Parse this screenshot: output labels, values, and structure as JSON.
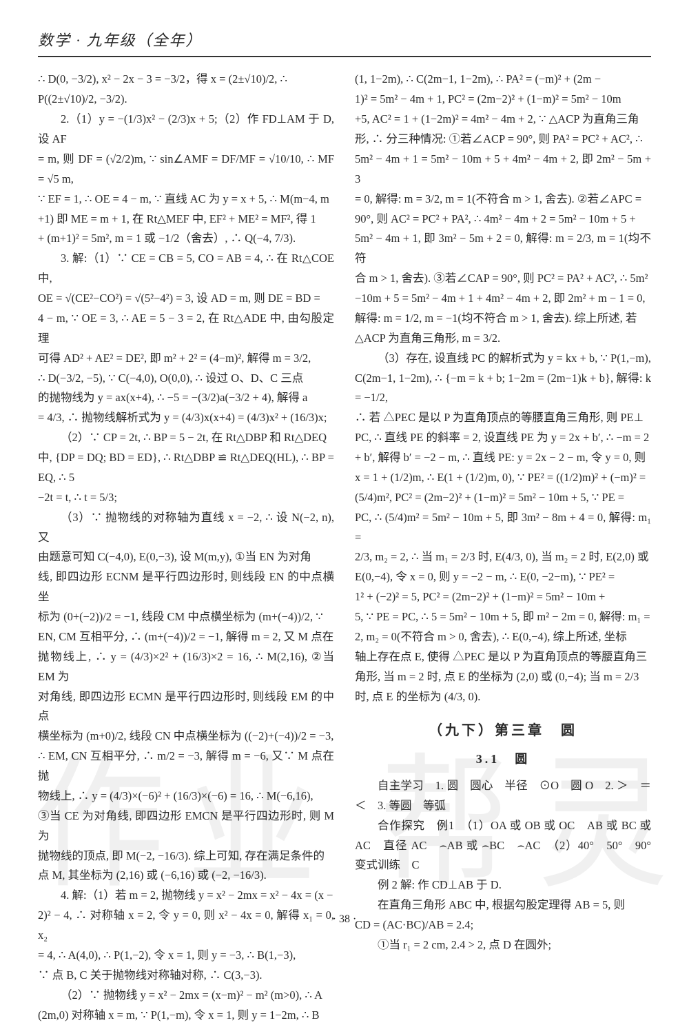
{
  "header": "数学 · 九年级（全年）",
  "pagenum": "· 38 ·",
  "watermark": [
    "作",
    "业",
    "帮",
    "灵"
  ],
  "left": [
    "∴ D(0, −3/2), x² − 2x − 3 = −3/2，得 x = (2±√10)/2, ∴",
    "P((2±√10)/2, −3/2).",
    "2.（1）y = −(1/3)x² − (2/3)x + 5;（2）作 FD⊥AM 于 D, 设 AF",
    "= m, 则 DF = (√2/2)m, ∵ sin∠AMF = DF/MF = √10/10, ∴ MF = √5 m,",
    "∵ EF = 1, ∴ OE = 4 − m, ∵ 直线 AC 为 y = x + 5, ∴ M(m−4, m",
    "+1) 即 ME = m + 1, 在 Rt△MEF 中, EF² + ME² = MF², 得 1",
    "+ (m+1)² = 5m², m = 1 或 −1/2（舍去）, ∴ Q(−4, 7/3).",
    "3. 解:（1）∵ CE = CB = 5, CO = AB = 4, ∴ 在 Rt△COE 中,",
    "OE = √(CE²−CO²) = √(5²−4²) = 3, 设 AD = m, 则 DE = BD =",
    "4 − m, ∵ OE = 3, ∴ AE = 5 − 3 = 2, 在 Rt△ADE 中, 由勾股定理",
    "可得 AD² + AE² = DE², 即 m² + 2² = (4−m)², 解得 m = 3/2,",
    "∴ D(−3/2, −5), ∵ C(−4,0), O(0,0), ∴ 设过 O、D、C 三点",
    "的抛物线为 y = ax(x+4), ∴ −5 = −(3/2)a(−3/2 + 4), 解得 a",
    "= 4/3, ∴ 抛物线解析式为 y = (4/3)x(x+4) = (4/3)x² + (16/3)x;",
    "（2）∵ CP = 2t, ∴ BP = 5 − 2t, 在 Rt△DBP 和 Rt△DEQ",
    "中, {DP = DQ; BD = ED}, ∴ Rt△DBP ≌ Rt△DEQ(HL), ∴ BP = EQ, ∴ 5",
    "−2t = t, ∴ t = 5/3;",
    "（3）∵ 抛物线的对称轴为直线 x = −2, ∴ 设 N(−2, n), 又",
    "由题意可知 C(−4,0), E(0,−3), 设 M(m,y), ①当 EN 为对角",
    "线, 即四边形 ECNM 是平行四边形时, 则线段 EN 的中点横坐",
    "标为 (0+(−2))/2 = −1, 线段 CM 中点横坐标为 (m+(−4))/2, ∵",
    "EN, CM 互相平分, ∴ (m+(−4))/2 = −1, 解得 m = 2, 又 M 点在",
    "抛物线上, ∴ y = (4/3)×2² + (16/3)×2 = 16, ∴ M(2,16), ②当 EM 为",
    "对角线, 即四边形 ECMN 是平行四边形时, 则线段 EM 的中点",
    "横坐标为 (m+0)/2, 线段 CN 中点横坐标为 ((−2)+(−4))/2 = −3,",
    "∴ EM, CN 互相平分, ∴ m/2 = −3, 解得 m = −6, 又∵ M 点在抛",
    "物线上, ∴ y = (4/3)×(−6)² + (16/3)×(−6) = 16, ∴ M(−6,16),",
    "③当 CE 为对角线, 即四边形 EMCN 是平行四边形时, 则 M 为",
    "抛物线的顶点, 即 M(−2, −16/3). 综上可知, 存在满足条件的",
    "点 M, 其坐标为 (2,16) 或 (−6,16) 或 (−2, −16/3).",
    "4. 解:（1）若 m = 2, 抛物线 y = x² − 2mx = x² − 4x = (x −",
    "2)² − 4, ∴ 对称轴 x = 2, 令 y = 0, 则 x² − 4x = 0, 解得 x₁ = 0, x₂",
    "= 4, ∴ A(4,0), ∴ P(1,−2), 令 x = 1, 则 y = −3, ∴ B(1,−3),",
    "∵ 点 B, C 关于抛物线对称轴对称, ∴ C(3,−3).",
    "（2）∵ 抛物线 y = x² − 2mx = (x−m)² − m² (m>0), ∴ A",
    "(2m,0) 对称轴 x = m, ∵ P(1,−m), 令 x = 1, 则 y = 1−2m, ∴ B"
  ],
  "right": [
    "(1, 1−2m), ∴ C(2m−1, 1−2m), ∴ PA² = (−m)² + (2m −",
    "1)² = 5m² − 4m + 1, PC² = (2m−2)² + (1−m)² = 5m² − 10m",
    "+5, AC² = 1 + (1−2m)² = 4m² − 4m + 2, ∵ △ACP 为直角三角",
    "形, ∴ 分三种情况: ①若∠ACP = 90°, 则 PA² = PC² + AC², ∴",
    "5m² − 4m + 1 = 5m² − 10m + 5 + 4m² − 4m + 2, 即 2m² − 5m + 3",
    "= 0, 解得: m = 3/2, m = 1(不符合 m > 1, 舍去). ②若∠APC =",
    "90°, 则 AC² = PC² + PA², ∴ 4m² − 4m + 2 = 5m² − 10m + 5 +",
    "5m² − 4m + 1, 即 3m² − 5m + 2 = 0, 解得: m = 2/3, m = 1(均不符",
    "合 m > 1, 舍去). ③若∠CAP = 90°, 则 PC² = PA² + AC², ∴ 5m²",
    "−10m + 5 = 5m² − 4m + 1 + 4m² − 4m + 2, 即 2m² + m − 1 = 0,",
    "解得: m = 1/2, m = −1(均不符合 m > 1, 舍去). 综上所述, 若",
    "△ACP 为直角三角形, m = 3/2.",
    "（3）存在, 设直线 PC 的解析式为 y = kx + b, ∵ P(1,−m),",
    "C(2m−1, 1−2m), ∴ {−m = k + b; 1−2m = (2m−1)k + b}, 解得: k = −1/2,",
    "∴ 若 △PEC 是以 P 为直角顶点的等腰直角三角形, 则 PE⊥",
    "PC, ∴ 直线 PE 的斜率 = 2, 设直线 PE 为 y = 2x + b′, ∴ −m = 2",
    "+ b′, 解得 b′ = −2 − m, ∴ 直线 PE: y = 2x − 2 − m, 令 y = 0, 则",
    "x = 1 + (1/2)m, ∴ E(1 + (1/2)m, 0), ∵ PE² = ((1/2)m)² + (−m)² =",
    "(5/4)m², PC² = (2m−2)² + (1−m)² = 5m² − 10m + 5, ∵ PE =",
    "PC, ∴ (5/4)m² = 5m² − 10m + 5, 即 3m² − 8m + 4 = 0, 解得: m₁ =",
    "2/3, m₂ = 2, ∴ 当 m₁ = 2/3 时, E(4/3, 0), 当 m₂ = 2 时, E(2,0) 或",
    "E(0,−4), 令 x = 0, 则 y = −2 − m, ∴ E(0, −2−m), ∵ PE² =",
    "1² + (−2)² = 5, PC² = (2m−2)² + (1−m)² = 5m² − 10m +",
    "5, ∵ PE = PC, ∴ 5 = 5m² − 10m + 5, 即 m² − 2m = 0, 解得: m₁ =",
    "2, m₂ = 0(不符合 m > 0, 舍去), ∴ E(0,−4), 综上所述, 坐标",
    "轴上存在点 E, 使得 △PEC 是以 P 为直角顶点的等腰直角三",
    "角形, 当 m = 2 时, 点 E 的坐标为 (2,0) 或 (0,−4); 当 m = 2/3",
    "时, 点 E 的坐标为 (4/3, 0)."
  ],
  "chapter": "（九下）第三章　圆",
  "section": "3.1　圆",
  "study": {
    "zz": "自主学习　1. 圆　圆心　半径　⊙O　圆 O　2. ＞　＝　＜　3. 等圆　等弧",
    "hz1": "合作探究　例1　（1）OA 或 OB 或 OC　AB 或 BC 或 AC　直径 AC　⌢AB 或 ⌢BC　⌢AC　（2）40°　50°　90°　变式训练　C",
    "ex2a": "例 2 解: 作 CD⊥AB 于 D.",
    "ex2b": "在直角三角形 ABC 中, 根据勾股定理得 AB = 5, 则",
    "ex2c": "CD = (AC·BC)/AB = 2.4;",
    "ex2d": "①当 r₁ = 2 cm, 2.4 > 2, 点 D 在圆外;"
  }
}
